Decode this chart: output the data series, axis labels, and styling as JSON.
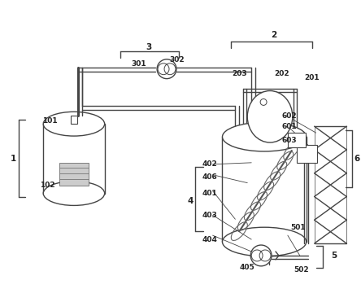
{
  "bg_color": "#ffffff",
  "lc": "#444444",
  "figsize": [
    4.44,
    3.55
  ],
  "dpi": 100
}
